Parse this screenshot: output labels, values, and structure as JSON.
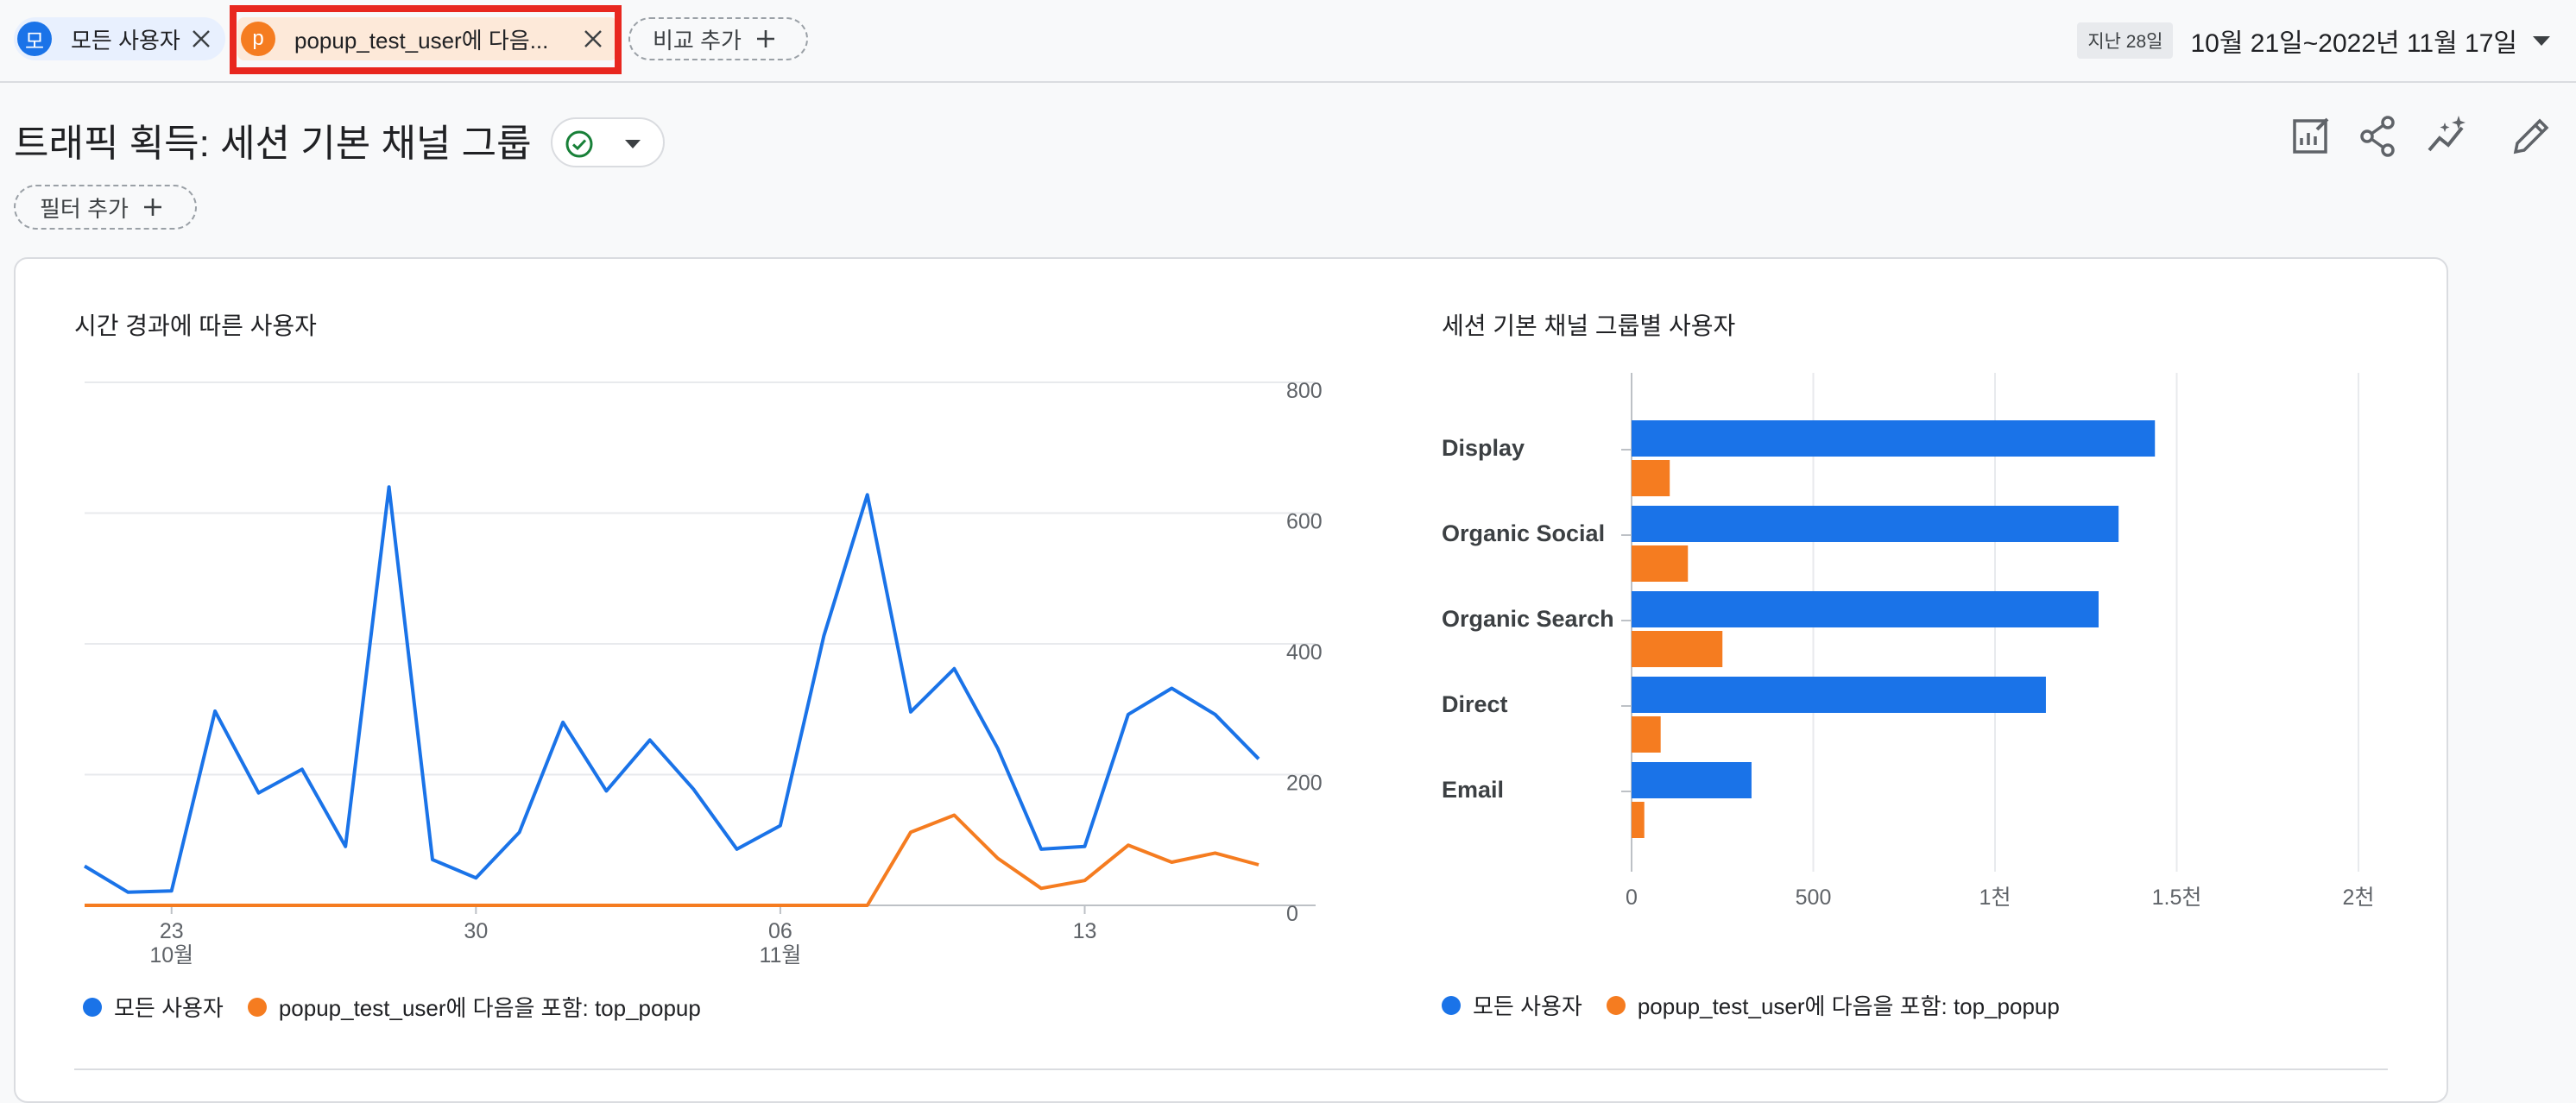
{
  "comparison_bar": {
    "chip_all": {
      "avatar": "모",
      "label": "모든 사용자"
    },
    "chip_popup": {
      "avatar": "p",
      "label": "popup_test_user에 다음..."
    },
    "add_comparison_label": "비교 추가",
    "date_badge": "지난 28일",
    "date_range": "10월 21일~2022년 11월 17일"
  },
  "header": {
    "title": "트래픽 획득: 세션 기본 채널 그룹",
    "add_filter_label": "필터 추가",
    "icons": [
      "customize-report-icon",
      "share-icon",
      "insights-icon",
      "edit-icon"
    ]
  },
  "colors": {
    "series_all": "#1a73e8",
    "series_popup": "#f57c20",
    "highlight": "#e8271f"
  },
  "line_chart": {
    "title": "시간 경과에 따른 사용자",
    "legend": [
      "모든 사용자",
      "popup_test_user에 다음을 포함: top_popup"
    ]
  },
  "bar_chart": {
    "title": "세션 기본 채널 그룹별 사용자",
    "legend": [
      "모든 사용자",
      "popup_test_user에 다음을 포함: top_popup"
    ]
  },
  "chart_data": [
    {
      "type": "line",
      "title": "시간 경과에 따른 사용자",
      "x": [
        "10-21",
        "10-22",
        "10-23",
        "10-24",
        "10-25",
        "10-26",
        "10-27",
        "10-28",
        "10-29",
        "10-30",
        "10-31",
        "11-01",
        "11-02",
        "11-03",
        "11-04",
        "11-05",
        "11-06",
        "11-07",
        "11-08",
        "11-09",
        "11-10",
        "11-11",
        "11-12",
        "11-13",
        "11-14",
        "11-15",
        "11-16",
        "11-17"
      ],
      "x_tick_labels": [
        {
          "date": "10-23",
          "label": "23",
          "sublabel": "10월"
        },
        {
          "date": "10-30",
          "label": "30",
          "sublabel": ""
        },
        {
          "date": "11-06",
          "label": "06",
          "sublabel": "11월"
        },
        {
          "date": "11-13",
          "label": "13",
          "sublabel": ""
        }
      ],
      "y_axis": {
        "position": "right",
        "ticks": [
          "0",
          "200",
          "400",
          "600",
          "800"
        ],
        "ylim": [
          0,
          800
        ]
      },
      "series": [
        {
          "name": "모든 사용자",
          "color": "#1a73e8",
          "values": [
            60,
            20,
            22,
            297,
            172,
            208,
            90,
            640,
            70,
            42,
            112,
            280,
            175,
            253,
            178,
            86,
            122,
            412,
            628,
            296,
            362,
            240,
            86,
            90,
            292,
            332,
            292,
            224
          ]
        },
        {
          "name": "popup_test_user에 다음을 포함: top_popup",
          "color": "#f57c20",
          "values": [
            0,
            0,
            0,
            0,
            0,
            0,
            0,
            0,
            0,
            0,
            0,
            0,
            0,
            0,
            0,
            0,
            0,
            0,
            0,
            112,
            138,
            72,
            26,
            38,
            92,
            66,
            80,
            62
          ]
        }
      ]
    },
    {
      "type": "bar",
      "orientation": "horizontal",
      "title": "세션 기본 채널 그룹별 사용자",
      "categories": [
        "Display",
        "Organic Social",
        "Organic Search",
        "Direct",
        "Email"
      ],
      "x_axis": {
        "ticks": [
          "0",
          "500",
          "1천",
          "1.5천",
          "2천"
        ],
        "xlim": [
          0,
          2000
        ]
      },
      "series": [
        {
          "name": "모든 사용자",
          "color": "#1a73e8",
          "values": [
            1440,
            1340,
            1285,
            1140,
            330
          ]
        },
        {
          "name": "popup_test_user에 다음을 포함: top_popup",
          "color": "#f57c20",
          "values": [
            105,
            155,
            250,
            80,
            35
          ]
        }
      ]
    }
  ]
}
